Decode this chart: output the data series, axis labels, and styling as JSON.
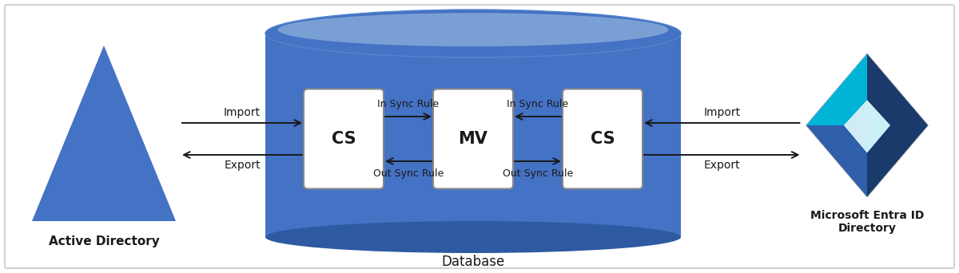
{
  "bg_color": "#ffffff",
  "border_color": "#c8c8c8",
  "db_color_main": "#4472c4",
  "db_color_top": "#7a9fd4",
  "db_color_rim": "#5585cc",
  "db_color_bottom_shadow": "#2d5aa0",
  "triangle_color": "#4472c4",
  "arrow_color": "#1a1a1a",
  "text_color": "#1a1a1a",
  "bold_text_color": "#1a1a1a",
  "ad_label": "Active Directory",
  "db_label": "Database",
  "ms_label": "Microsoft Entra ID\nDirectory",
  "cs_left_label": "CS",
  "mv_label": "MV",
  "cs_right_label": "CS",
  "in_sync_left": "In Sync Rule",
  "out_sync_left": "Out Sync Rule",
  "in_sync_right": "In Sync Rule",
  "out_sync_right": "Out Sync Rule",
  "import_left": "Import",
  "export_left": "Export",
  "import_right": "Import",
  "export_right": "Export",
  "icon_dark_blue": "#1a3a6b",
  "icon_med_blue": "#2f5faa",
  "icon_cyan_bright": "#00b4d8",
  "icon_cyan_light": "#90e0ef",
  "icon_grey_light": "#caf0f8"
}
